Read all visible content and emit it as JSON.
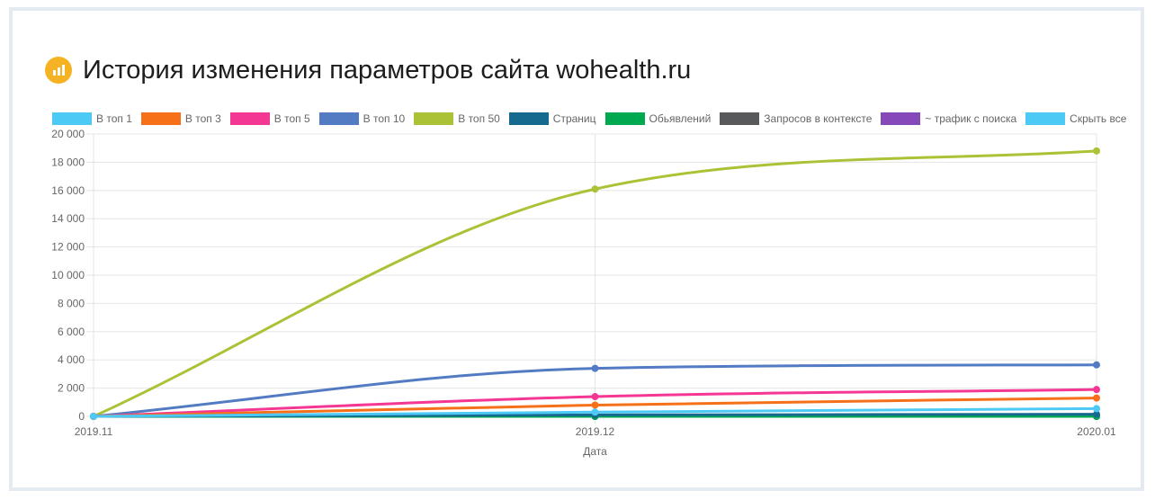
{
  "title": "История изменения параметров сайта wohealth.ru",
  "icon": "bar-chart-icon",
  "colors": {
    "icon_bg": "#f5b323",
    "grid": "#e5e5e5"
  },
  "chart_data": {
    "type": "line",
    "x": [
      "2019.11",
      "2019.12",
      "2020.01"
    ],
    "xlabel": "Дата",
    "ylabel": "",
    "ylim": [
      0,
      20000
    ],
    "yticks": [
      0,
      2000,
      4000,
      6000,
      8000,
      10000,
      12000,
      14000,
      16000,
      18000,
      20000
    ],
    "ytick_labels": [
      "0",
      "2 000",
      "4 000",
      "6 000",
      "8 000",
      "10 000",
      "12 000",
      "14 000",
      "16 000",
      "18 000",
      "20 000"
    ],
    "grid": true,
    "legend_position": "top",
    "series": [
      {
        "name": "В топ 1",
        "color": "#4dc9f6",
        "values": [
          0,
          300,
          550
        ]
      },
      {
        "name": "В топ 3",
        "color": "#f67019",
        "values": [
          0,
          800,
          1300
        ]
      },
      {
        "name": "В топ 5",
        "color": "#f53794",
        "values": [
          0,
          1400,
          1900
        ]
      },
      {
        "name": "В топ 10",
        "color": "#537bc4",
        "values": [
          0,
          3400,
          3650
        ]
      },
      {
        "name": "В топ 50",
        "color": "#acc236",
        "values": [
          0,
          16100,
          18800
        ]
      },
      {
        "name": "Страниц",
        "color": "#166a8f",
        "values": [
          0,
          100,
          150
        ]
      },
      {
        "name": "Обьявлений",
        "color": "#00a950",
        "values": [
          0,
          0,
          0
        ]
      },
      {
        "name": "Запросов в контексте",
        "color": "#58595b",
        "values": [
          0,
          0,
          0
        ]
      },
      {
        "name": "~ трафик с поиска",
        "color": "#8549ba",
        "values": [
          0,
          0,
          0
        ]
      }
    ],
    "hide_all_label": "Скрыть все",
    "hide_all_color": "#4dc9f6"
  }
}
